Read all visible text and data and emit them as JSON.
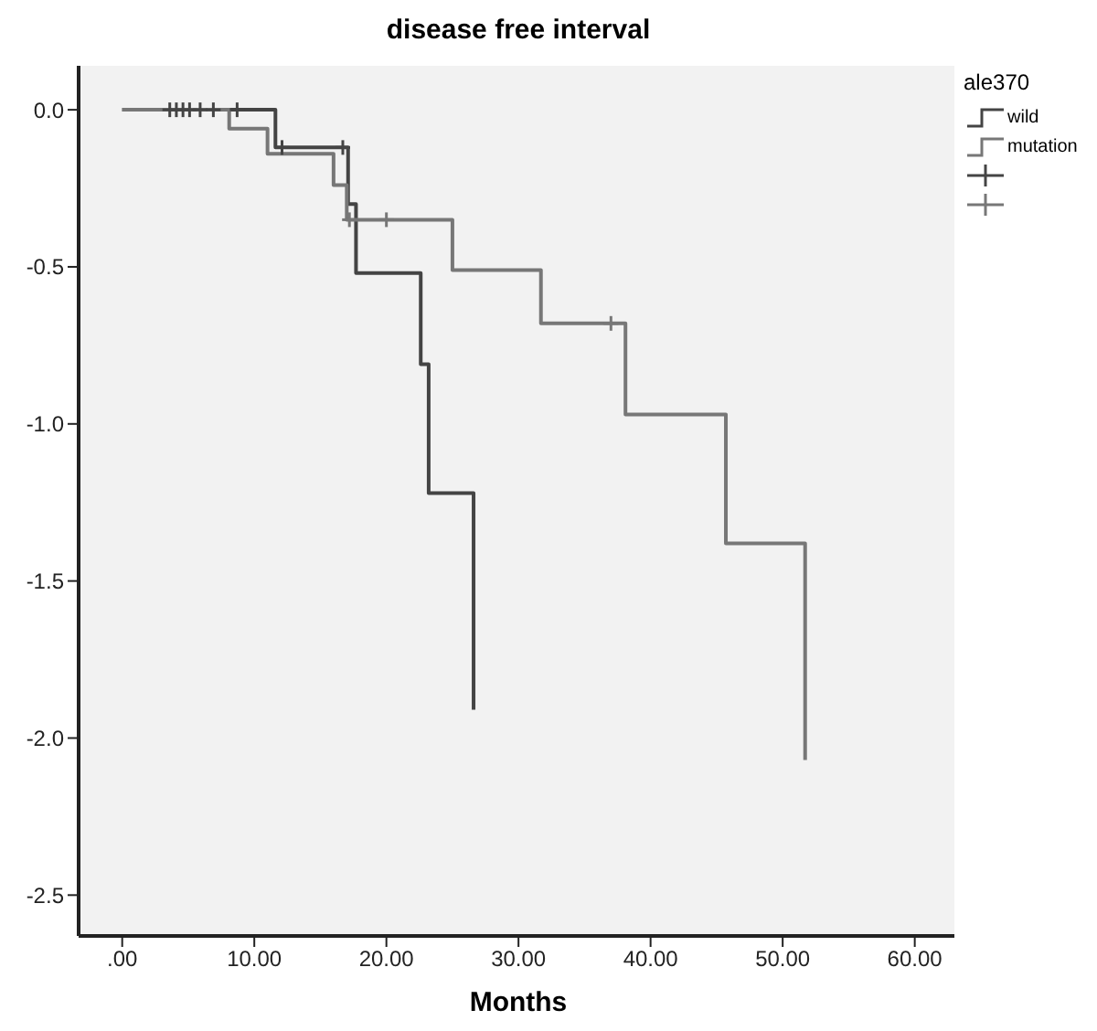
{
  "chart_data": {
    "type": "step",
    "title": "disease free interval",
    "xlabel": "Months",
    "legend_title": "ale370",
    "legend": "right",
    "xlim": [
      -3.3,
      63
    ],
    "xticks": [
      {
        "value": 0,
        "label": ".00"
      },
      {
        "value": 10,
        "label": "10.00"
      },
      {
        "value": 20,
        "label": "20.00"
      },
      {
        "value": 30,
        "label": "30.00"
      },
      {
        "value": 40,
        "label": "40.00"
      },
      {
        "value": 50,
        "label": "50.00"
      },
      {
        "value": 60,
        "label": "60.00"
      }
    ],
    "ylim": [
      -2.63,
      0.14
    ],
    "yticks": [
      {
        "value": 0,
        "label": "0.0"
      },
      {
        "value": -0.5,
        "label": "-0.5"
      },
      {
        "value": -1,
        "label": "-1.0"
      },
      {
        "value": -1.5,
        "label": "-1.5"
      },
      {
        "value": -2,
        "label": "-2.0"
      },
      {
        "value": -2.5,
        "label": "-2.5"
      }
    ],
    "grid": false,
    "series": [
      {
        "name": "wild",
        "type": "step",
        "color": "#444444",
        "marker": "none",
        "x": [
          0,
          11.6,
          17.1,
          17.7,
          22.6,
          23.2,
          26.6
        ],
        "values": [
          0,
          -0.12,
          -0.3,
          -0.52,
          -0.81,
          -1.22,
          -1.91
        ]
      },
      {
        "name": "mutation",
        "type": "step",
        "color": "#777777",
        "marker": "none",
        "x": [
          0,
          8.1,
          11.0,
          16.0,
          17.0,
          25.0,
          31.7,
          38.1,
          45.7,
          51.7
        ],
        "values": [
          0,
          -0.06,
          -0.14,
          -0.24,
          -0.35,
          -0.51,
          -0.68,
          -0.97,
          -1.38,
          -2.07
        ]
      },
      {
        "type": "scatter",
        "color": "#444444",
        "marker": "cross",
        "x": [
          3.6,
          4.1,
          4.6,
          5.1,
          5.9,
          6.9,
          8.7,
          12.1,
          16.7
        ],
        "values": [
          0,
          0,
          0,
          0,
          0,
          0,
          0,
          -0.12,
          -0.12
        ]
      },
      {
        "type": "scatter",
        "color": "#777777",
        "marker": "cross",
        "x": [
          17.2,
          20.0,
          37.0
        ],
        "values": [
          -0.35,
          -0.35,
          -0.68
        ]
      }
    ]
  }
}
